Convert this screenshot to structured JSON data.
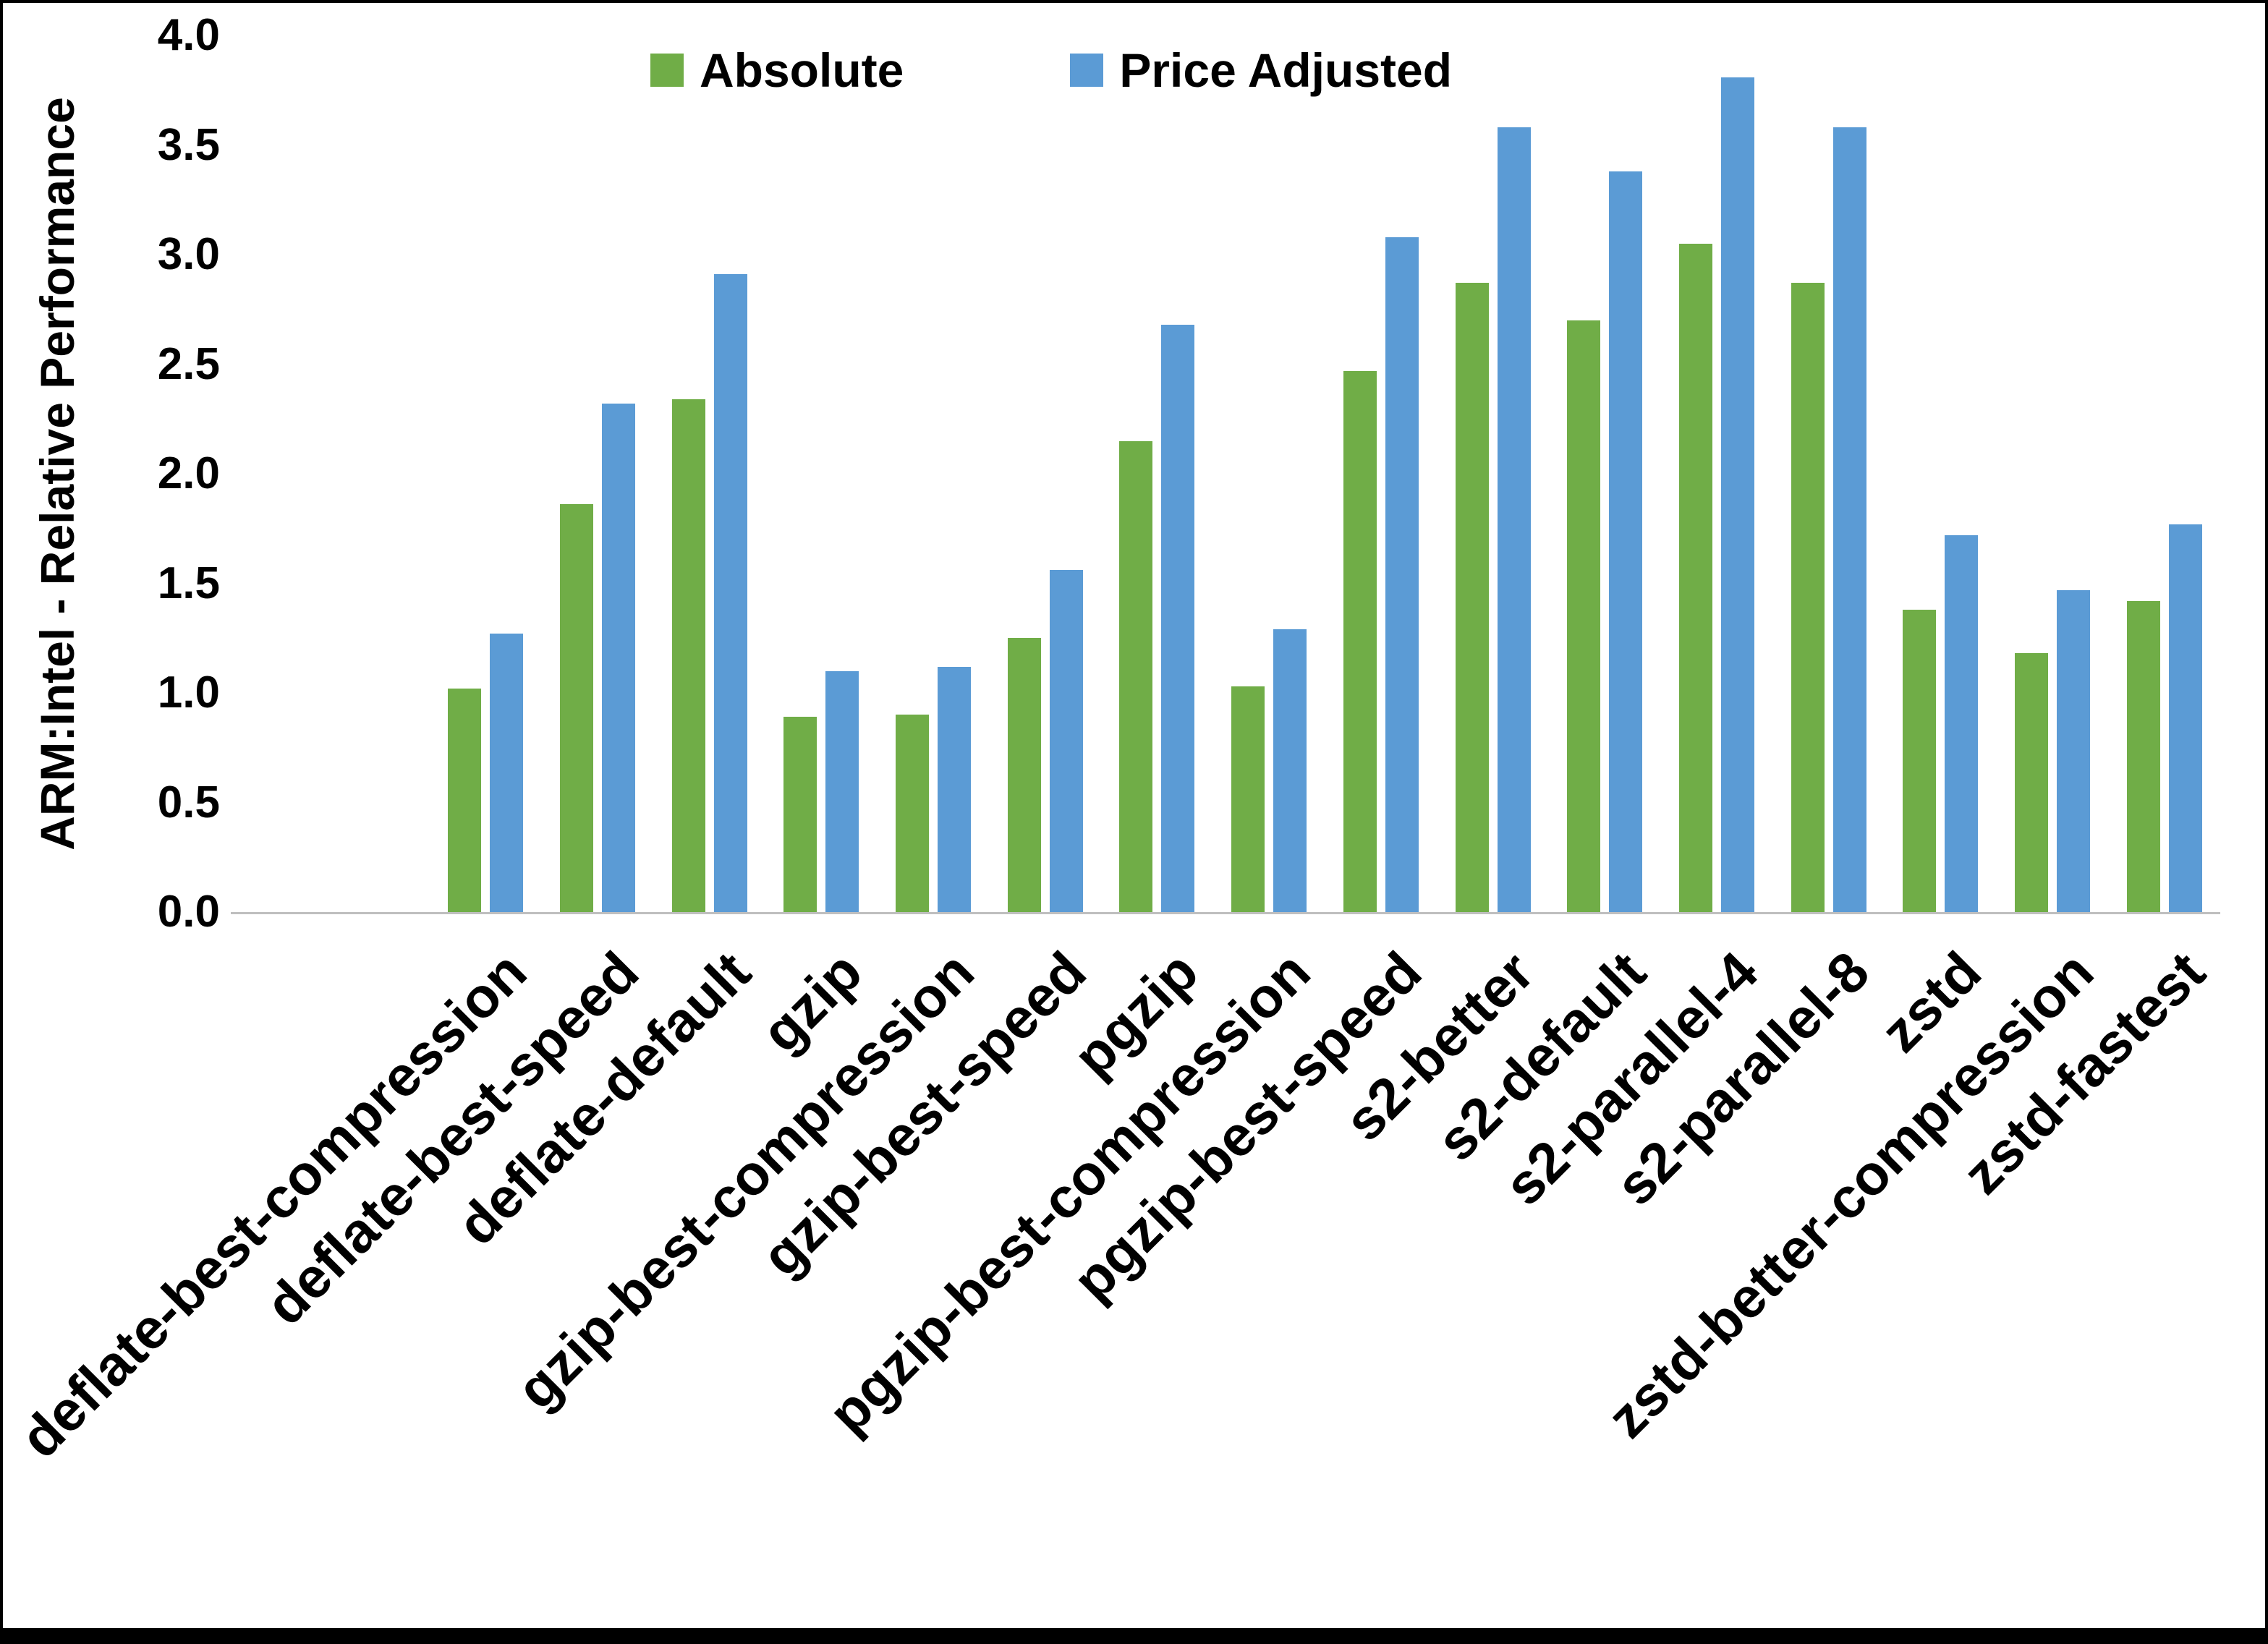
{
  "chart_data": {
    "type": "bar",
    "title": "",
    "ylabel": "ARM:Intel - Relative Performance",
    "xlabel": "",
    "ylim": [
      0.0,
      4.0
    ],
    "ytick_step": 0.5,
    "yticks": [
      "0.0",
      "0.5",
      "1.0",
      "1.5",
      "2.0",
      "2.5",
      "3.0",
      "3.5",
      "4.0"
    ],
    "grid": false,
    "legend_position": "top",
    "axis_line_color": "#bfbfbf",
    "text_color": "#000000",
    "categories": [
      "deflate-best-compression",
      "deflate-best-speed",
      "deflate-default",
      "gzip",
      "gzip-best-compression",
      "gzip-best-speed",
      "pgzip",
      "pgzip-best-compression",
      "pgzip-best-speed",
      "s2-better",
      "s2-default",
      "s2-parallel-4",
      "s2-parallel-8",
      "zstd",
      "zstd-better-compression",
      "zstd-fastest"
    ],
    "series": [
      {
        "name": "Absolute",
        "color": "#70AD47",
        "values": [
          1.02,
          1.86,
          2.34,
          0.89,
          0.9,
          1.25,
          2.15,
          1.03,
          2.47,
          2.87,
          2.7,
          3.05,
          2.87,
          1.38,
          1.18,
          1.42
        ]
      },
      {
        "name": "Price Adjusted",
        "color": "#5B9BD5",
        "values": [
          1.27,
          2.32,
          2.91,
          1.1,
          1.12,
          1.56,
          2.68,
          1.29,
          3.08,
          3.58,
          3.38,
          3.81,
          3.58,
          1.72,
          1.47,
          1.77
        ]
      }
    ]
  }
}
